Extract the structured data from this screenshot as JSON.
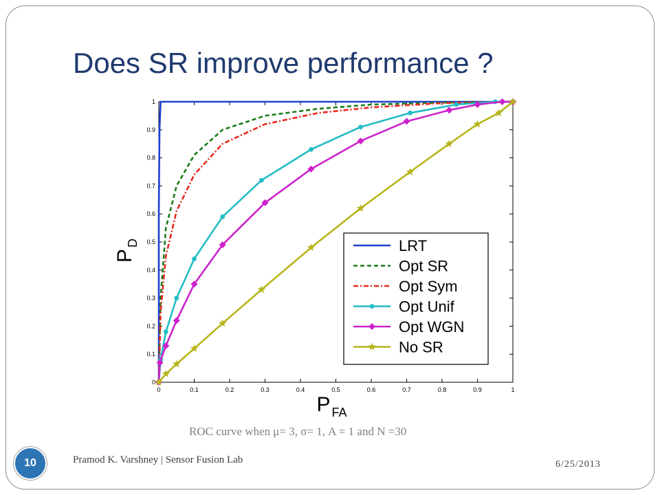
{
  "slide": {
    "title": "Does SR improve performance ?",
    "caption": "ROC curve when μ= 3, σ= 1, A = 1 and N =30",
    "footer": "Pramod K. Varshney | Sensor Fusion Lab",
    "date": "6/25/2013",
    "page_number": "10"
  },
  "colors": {
    "title": "#1f3a6e",
    "badge": "#2e75b6"
  },
  "chart_data": {
    "type": "line",
    "xlabel": "P",
    "xlabel_sub": "FA",
    "ylabel": "P",
    "ylabel_sub": "D",
    "xlim": [
      0,
      1
    ],
    "ylim": [
      0,
      1
    ],
    "xticks": [
      0,
      0.1,
      0.2,
      0.3,
      0.4,
      0.5,
      0.6,
      0.7,
      0.8,
      0.9,
      1
    ],
    "yticks": [
      0,
      0.1,
      0.2,
      0.3,
      0.4,
      0.5,
      0.6,
      0.7,
      0.8,
      0.9,
      1
    ],
    "xtick_labels": [
      "0",
      "0.1",
      "0.2",
      "0.3",
      "0.4",
      "0.5",
      "0.6",
      "0.7",
      "0.8",
      "0.9",
      "1"
    ],
    "ytick_labels": [
      "0",
      "0.1",
      "0.2",
      "0.3",
      "0.4",
      "0.5",
      "0.6",
      "0.7",
      "0.8",
      "0.9",
      "1"
    ],
    "grid": false,
    "legend_position": "lower-right",
    "series": [
      {
        "name": "LRT",
        "color": "#1f3fd0",
        "dash": "solid",
        "marker": "none",
        "x": [
          0,
          0,
          0.002,
          0.005,
          1
        ],
        "y": [
          0,
          0.6,
          0.9,
          1,
          1
        ]
      },
      {
        "name": "Opt SR",
        "color": "#1a7a1a",
        "dash": "dashed",
        "marker": "none",
        "x": [
          0,
          0.005,
          0.02,
          0.05,
          0.1,
          0.18,
          0.3,
          0.45,
          0.6,
          0.8,
          1
        ],
        "y": [
          0,
          0.3,
          0.55,
          0.7,
          0.81,
          0.9,
          0.95,
          0.975,
          0.99,
          0.997,
          1
        ]
      },
      {
        "name": "Opt Sym",
        "color": "#e8261c",
        "dash": "dashdot",
        "marker": "none",
        "x": [
          0,
          0.005,
          0.02,
          0.05,
          0.1,
          0.18,
          0.3,
          0.45,
          0.6,
          0.8,
          1
        ],
        "y": [
          0,
          0.25,
          0.45,
          0.61,
          0.74,
          0.85,
          0.92,
          0.96,
          0.98,
          0.995,
          1
        ]
      },
      {
        "name": "Opt Unif",
        "color": "#22bcc4",
        "dash": "solid",
        "marker": "dot",
        "x": [
          0,
          0.005,
          0.02,
          0.05,
          0.1,
          0.18,
          0.29,
          0.43,
          0.57,
          0.71,
          0.84,
          0.95,
          1
        ],
        "y": [
          0,
          0.08,
          0.18,
          0.3,
          0.44,
          0.59,
          0.72,
          0.83,
          0.91,
          0.96,
          0.99,
          1,
          1
        ]
      },
      {
        "name": "Opt WGN",
        "color": "#cc22cc",
        "dash": "solid",
        "marker": "diamond",
        "x": [
          0,
          0.003,
          0.02,
          0.05,
          0.1,
          0.18,
          0.3,
          0.43,
          0.57,
          0.7,
          0.82,
          0.9,
          0.97,
          1
        ],
        "y": [
          0,
          0.07,
          0.13,
          0.22,
          0.35,
          0.49,
          0.64,
          0.76,
          0.86,
          0.93,
          0.97,
          0.99,
          1,
          1
        ]
      },
      {
        "name": "No SR",
        "color": "#b6b51a",
        "dash": "solid",
        "marker": "star",
        "x": [
          0,
          0.02,
          0.05,
          0.1,
          0.18,
          0.29,
          0.43,
          0.57,
          0.71,
          0.82,
          0.9,
          0.96,
          1
        ],
        "y": [
          0,
          0.03,
          0.065,
          0.12,
          0.21,
          0.33,
          0.48,
          0.62,
          0.75,
          0.85,
          0.92,
          0.96,
          1
        ]
      }
    ]
  }
}
